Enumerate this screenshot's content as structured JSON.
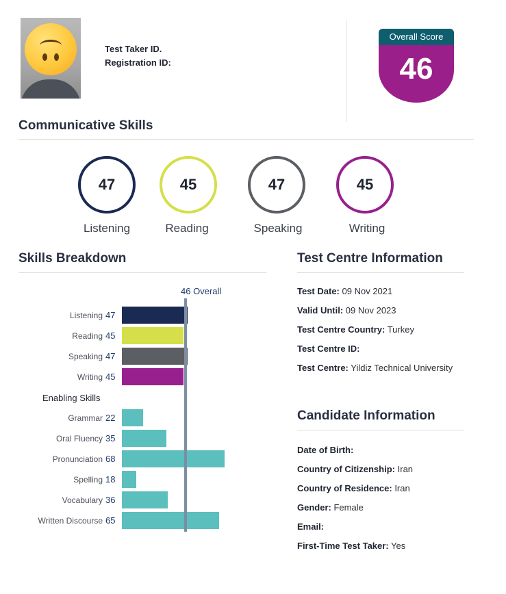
{
  "header": {
    "test_taker_label": "Test Taker ID.",
    "registration_label": "Registration ID:",
    "overall_score_label": "Overall Score",
    "overall_score_value": "46"
  },
  "communicative": {
    "title": "Communicative Skills",
    "skills": [
      {
        "name": "Listening",
        "score": "47",
        "color": "#1b2a52"
      },
      {
        "name": "Reading",
        "score": "45",
        "color": "#d4df4a"
      },
      {
        "name": "Speaking",
        "score": "47",
        "color": "#5b5e63"
      },
      {
        "name": "Writing",
        "score": "45",
        "color": "#97208e"
      }
    ]
  },
  "breakdown": {
    "title": "Skills Breakdown",
    "overall_label": "46 Overall",
    "enabling_title": "Enabling Skills"
  },
  "chart_data": {
    "type": "bar",
    "overall": 46,
    "groups": [
      {
        "name": "Communicative",
        "categories": [
          "Listening",
          "Reading",
          "Speaking",
          "Writing"
        ],
        "values": [
          47,
          45,
          47,
          45
        ],
        "colors": [
          "#1b2a52",
          "#d4df4a",
          "#5b5e63",
          "#97208e"
        ]
      },
      {
        "name": "Enabling Skills",
        "categories": [
          "Grammar",
          "Oral Fluency",
          "Pronunciation",
          "Spelling",
          "Vocabulary",
          "Written Discourse"
        ],
        "values": [
          22,
          35,
          68,
          18,
          36,
          65
        ],
        "colors": [
          "#5bbfbd",
          "#5bbfbd",
          "#5bbfbd",
          "#5bbfbd",
          "#5bbfbd",
          "#5bbfbd"
        ]
      }
    ],
    "xlim": [
      10,
      90
    ]
  },
  "test_centre": {
    "title": "Test Centre Information",
    "rows": [
      {
        "label": "Test Date:",
        "value": "09 Nov 2021"
      },
      {
        "label": "Valid Until:",
        "value": "09 Nov 2023"
      },
      {
        "label": "Test Centre Country:",
        "value": "Turkey"
      },
      {
        "label": "Test Centre ID:",
        "value": ""
      },
      {
        "label": "Test Centre:",
        "value": "Yildiz Technical University"
      }
    ]
  },
  "candidate": {
    "title": "Candidate Information",
    "rows": [
      {
        "label": "Date of Birth:",
        "value": ""
      },
      {
        "label": "Country of Citizenship:",
        "value": "Iran"
      },
      {
        "label": "Country of Residence:",
        "value": "Iran"
      },
      {
        "label": "Gender:",
        "value": "Female"
      },
      {
        "label": "Email:",
        "value": ""
      },
      {
        "label": "First-Time Test Taker:",
        "value": "Yes"
      }
    ]
  }
}
